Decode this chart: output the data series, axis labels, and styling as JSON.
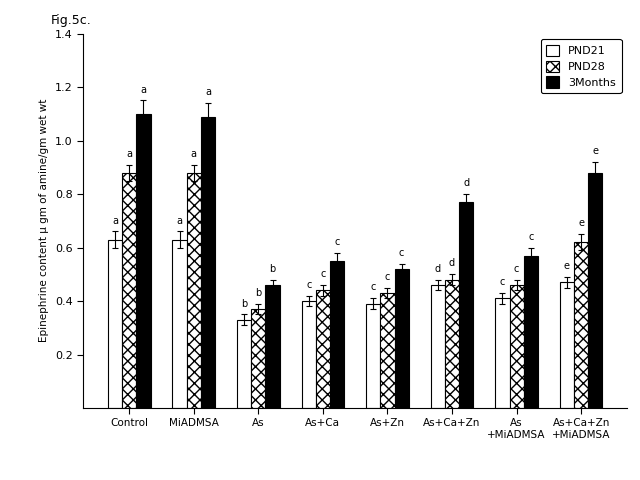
{
  "title": "Fig.5c.",
  "ylabel": "Epinephrine content μ gm of amine/gm wet wt",
  "categories": [
    "Control",
    "MiADMSA",
    "As",
    "As+Ca",
    "As+Zn",
    "As+Ca+Zn",
    "As\n+MiADMSA",
    "As+Ca+Zn\n+MiADMSA"
  ],
  "pnd21_values": [
    0.63,
    0.63,
    0.33,
    0.4,
    0.39,
    0.46,
    0.41,
    0.47
  ],
  "pnd28_values": [
    0.88,
    0.88,
    0.37,
    0.44,
    0.43,
    0.48,
    0.46,
    0.62
  ],
  "months3_values": [
    1.1,
    1.09,
    0.46,
    0.55,
    0.52,
    0.77,
    0.57,
    0.88
  ],
  "pnd21_errors": [
    0.03,
    0.03,
    0.02,
    0.02,
    0.02,
    0.02,
    0.02,
    0.02
  ],
  "pnd28_errors": [
    0.03,
    0.03,
    0.02,
    0.02,
    0.02,
    0.02,
    0.02,
    0.03
  ],
  "months3_errors": [
    0.05,
    0.05,
    0.02,
    0.03,
    0.02,
    0.03,
    0.03,
    0.04
  ],
  "pnd21_labels": [
    "a",
    "a",
    "b",
    "c",
    "c",
    "d",
    "c",
    "e"
  ],
  "pnd28_labels": [
    "a",
    "a",
    "b",
    "c",
    "c",
    "d",
    "c",
    "e"
  ],
  "months3_labels": [
    "a",
    "a",
    "b",
    "c",
    "c",
    "d",
    "c",
    "e"
  ],
  "ylim": [
    0,
    1.4
  ],
  "yticks": [
    0.2,
    0.4,
    0.6,
    0.8,
    1.0,
    1.2,
    1.4
  ],
  "bar_width": 0.22,
  "pnd28_hatch": "xxx",
  "edge_color": "black",
  "legend_labels": [
    "PND21",
    "PND28",
    "3Months"
  ],
  "figsize": [
    6.4,
    4.8
  ],
  "dpi": 100
}
